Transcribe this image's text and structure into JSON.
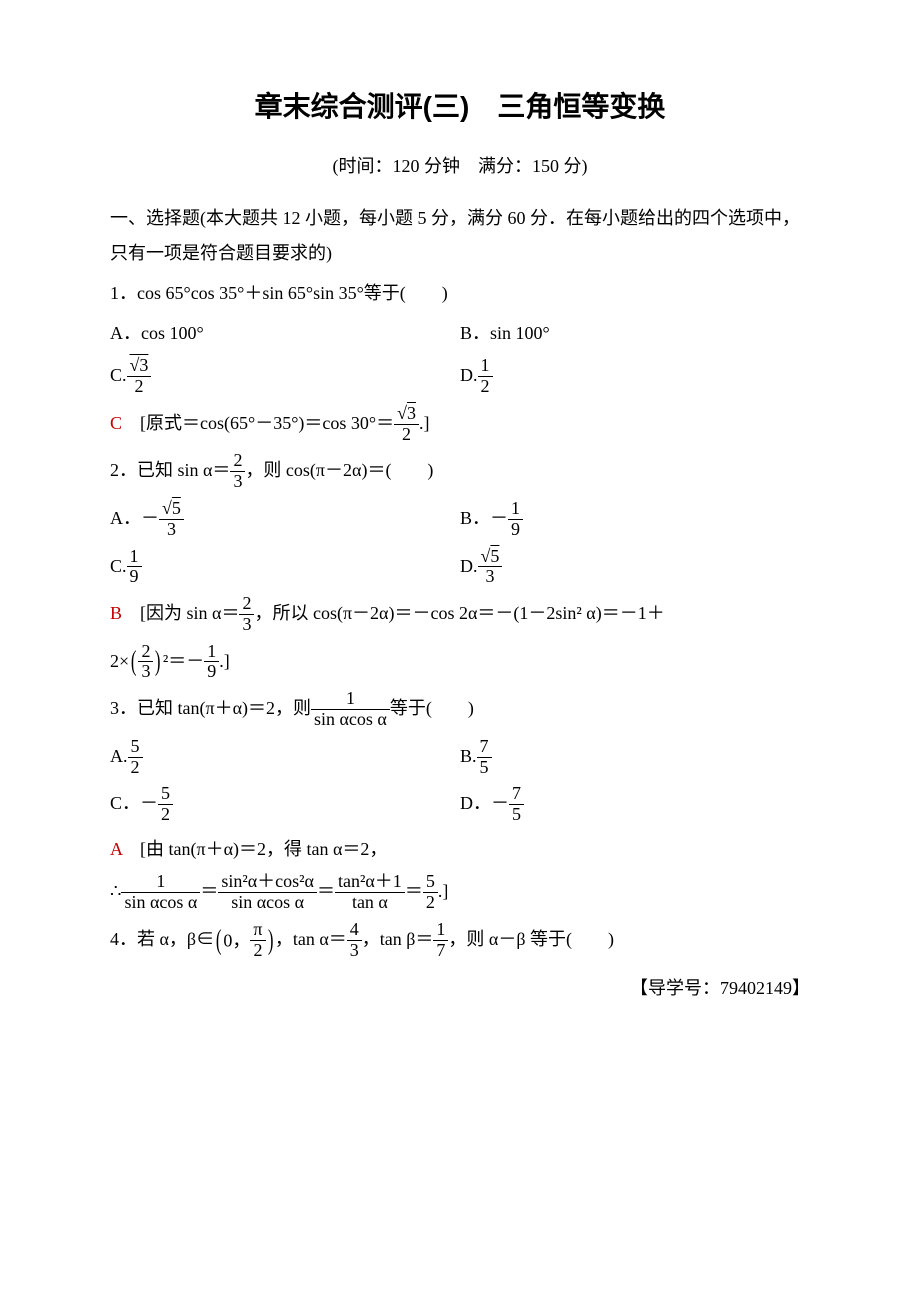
{
  "colors": {
    "accent": "#c00000",
    "text": "#000000",
    "bg": "#ffffff"
  },
  "fontsize": {
    "body": 18,
    "title": 28
  },
  "title": "章末综合测评(三)　三角恒等变换",
  "subtitle": "(时间：120 分钟　满分：150 分)",
  "section1_head": "一、选择题(本大题共 12 小题，每小题 5 分，满分 60 分．在每小题给出的四个选项中，只有一项是符合题目要求的)",
  "q1": {
    "stem": "1．cos 65°cos 35°＋sin 65°sin 35°等于(　　)",
    "optA": "A．cos 100°",
    "optB": "B．sin 100°",
    "optC_label": "C.",
    "optC_num": "√3",
    "optC_den": "2",
    "optD_label": "D.",
    "optD_num": "1",
    "optD_den": "2",
    "ans": "C",
    "expl_prefix": "　[原式＝cos(65°－35°)＝cos 30°＝",
    "expl_num": "√3",
    "expl_den": "2",
    "expl_suffix": ".]"
  },
  "q2": {
    "stem_prefix": "2．已知 sin α＝",
    "stem_num": "2",
    "stem_den": "3",
    "stem_suffix": "，则 cos(π－2α)＝(　　)",
    "optA_label": "A．－",
    "optA_num": "√5",
    "optA_den": "3",
    "optB_label": "B．－",
    "optB_num": "1",
    "optB_den": "9",
    "optC_label": "C.",
    "optC_num": "1",
    "optC_den": "9",
    "optD_label": "D.",
    "optD_num": "√5",
    "optD_den": "3",
    "ans": "B",
    "expl_prefix": "　[因为 sin α＝",
    "expl_f1_num": "2",
    "expl_f1_den": "3",
    "expl_mid": "，所以 cos(π－2α)＝－cos 2α＝－(1－2sin² α)＝－1＋",
    "expl_line2_prefix": "2×",
    "expl_paren_num": "2",
    "expl_paren_den": "3",
    "expl_sq": "²＝－",
    "expl_res_num": "1",
    "expl_res_den": "9",
    "expl_suffix": ".]"
  },
  "q3": {
    "stem_prefix": "3．已知 tan(π＋α)＝2，则",
    "stem_frac_num": "1",
    "stem_frac_den": "sin αcos α",
    "stem_suffix": "等于(　　)",
    "optA_label": "A.",
    "optA_num": "5",
    "optA_den": "2",
    "optB_label": "B.",
    "optB_num": "7",
    "optB_den": "5",
    "optC_label": "C．－",
    "optC_num": "5",
    "optC_den": "2",
    "optD_label": "D．－",
    "optD_num": "7",
    "optD_den": "5",
    "ans": "A",
    "expl_line1": "　[由 tan(π＋α)＝2，得 tan α＝2，",
    "expl2_prefix": "∴",
    "expl2_f1_num": "1",
    "expl2_f1_den": "sin αcos α",
    "expl2_f2_num": "sin²α＋cos²α",
    "expl2_f2_den": "sin αcos α",
    "expl2_f3_num": "tan²α＋1",
    "expl2_f3_den": "tan α",
    "expl2_f4_num": "5",
    "expl2_f4_den": "2",
    "expl2_suffix": ".]"
  },
  "q4": {
    "stem_prefix": "4．若 α，β∈",
    "interval_lo": "0",
    "interval_hi_num": "π",
    "interval_hi_den": "2",
    "stem_mid1": "，tan α＝",
    "f1_num": "4",
    "f1_den": "3",
    "stem_mid2": "，tan β＝",
    "f2_num": "1",
    "f2_den": "7",
    "stem_suffix": "，则 α－β 等于(　　)"
  },
  "reference": "【导学号：79402149】"
}
